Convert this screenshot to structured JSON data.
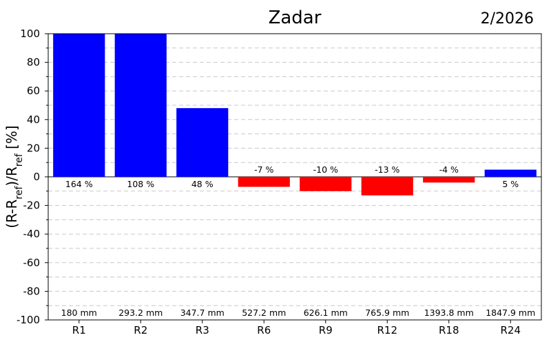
{
  "chart_data": {
    "type": "bar",
    "title": "Zadar",
    "period": "2/2026",
    "ylabel": {
      "base": "(R-R",
      "sub1": "ref",
      "mid": ")/R",
      "sub2": "ref",
      "end": " [%]"
    },
    "ylim": [
      -100,
      100
    ],
    "yticks": [
      "100",
      "80",
      "60",
      "40",
      "20",
      "0",
      "-20",
      "-40",
      "-60",
      "-80",
      "-100"
    ],
    "grid": true,
    "colors": {
      "positive": "#0000ff",
      "negative": "#ff0000"
    },
    "categories": [
      "R1",
      "R2",
      "R3",
      "R6",
      "R9",
      "R12",
      "R18",
      "R24"
    ],
    "values": [
      164,
      108,
      48,
      -7,
      -10,
      -13,
      -4,
      5
    ],
    "value_labels": [
      "164 %",
      "108 %",
      "48 %",
      "-7 %",
      "-10 %",
      "-13 %",
      "-4 %",
      "5 %"
    ],
    "precip_labels": [
      "180 mm",
      "293.2 mm",
      "347.7 mm",
      "527.2 mm",
      "626.1 mm",
      "765.9 mm",
      "1393.8 mm",
      "1847.9 mm"
    ]
  }
}
